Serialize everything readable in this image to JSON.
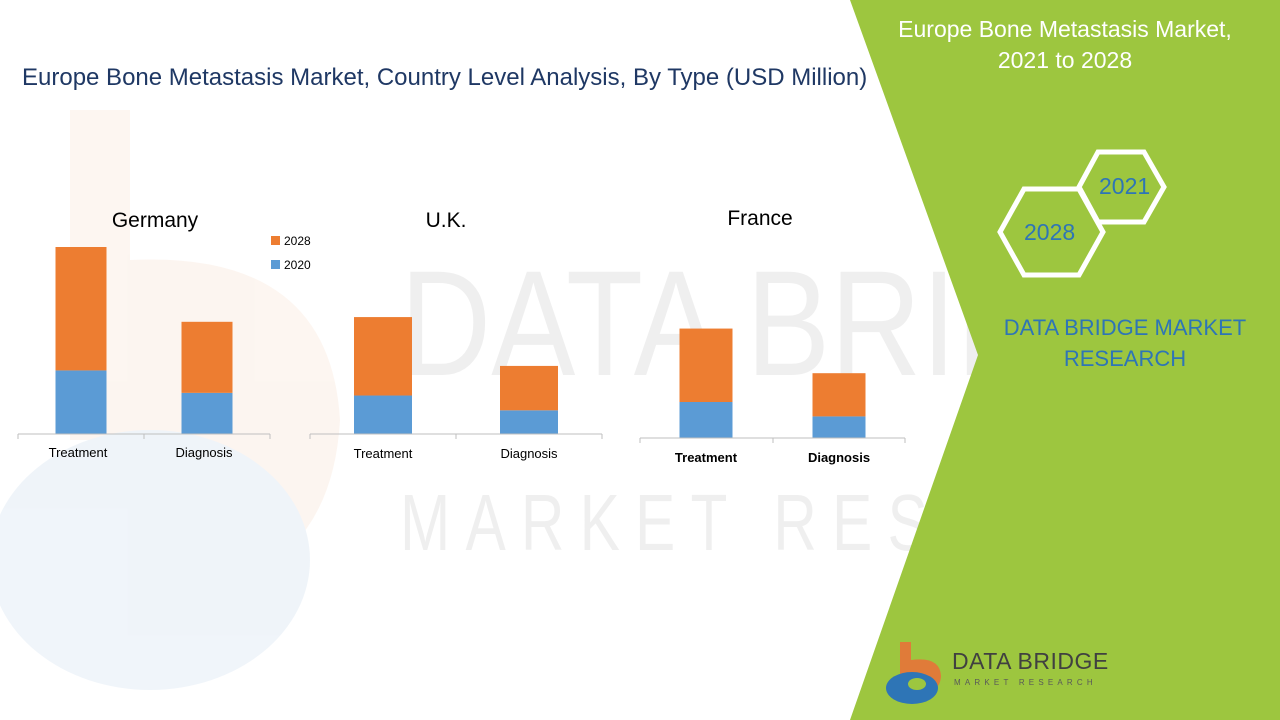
{
  "page_title": "Europe Bone Metastasis Market, Country Level Analysis, By Type (USD Million)",
  "side_panel": {
    "title_line1": "Europe Bone Metastasis Market,",
    "title_line2": "2021 to 2028",
    "hex_top": "2021",
    "hex_bottom": "2028",
    "brand_line1": "DATA BRIDGE MARKET",
    "brand_line2": "RESEARCH"
  },
  "logo": {
    "name": "DATA BRIDGE",
    "tagline": "MARKET RESEARCH"
  },
  "watermark": {
    "line1": "DATA BRIDGE",
    "line2": "MARKET RESEARCH"
  },
  "colors": {
    "series_2020": "#5b9bd5",
    "series_2028": "#ed7d31",
    "panel_green": "#9dc63f",
    "title_blue": "#1f3864",
    "brand_blue": "#2e75b6"
  },
  "chart_data": [
    {
      "type": "bar",
      "stacked": true,
      "title": "Germany",
      "categories": [
        "Treatment",
        "Diagnosis"
      ],
      "legend": [
        "2028",
        "2020"
      ],
      "series": [
        {
          "name": "2020",
          "values": [
            34,
            22
          ]
        },
        {
          "name": "2028",
          "values": [
            66,
            38
          ]
        }
      ],
      "ylim": [
        0,
        100
      ],
      "grid": false
    },
    {
      "type": "bar",
      "stacked": true,
      "title": "U.K.",
      "categories": [
        "Treatment",
        "Diagnosis"
      ],
      "series": [
        {
          "name": "2020",
          "values": [
            26,
            16
          ]
        },
        {
          "name": "2028",
          "values": [
            53,
            30
          ]
        }
      ],
      "ylim": [
        0,
        100
      ],
      "grid": false
    },
    {
      "type": "bar",
      "stacked": true,
      "title": "France",
      "categories": [
        "Treatment",
        "Diagnosis"
      ],
      "series": [
        {
          "name": "2020",
          "values": [
            25,
            15
          ]
        },
        {
          "name": "2028",
          "values": [
            51,
            30
          ]
        }
      ],
      "ylim": [
        0,
        100
      ],
      "grid": false
    }
  ]
}
